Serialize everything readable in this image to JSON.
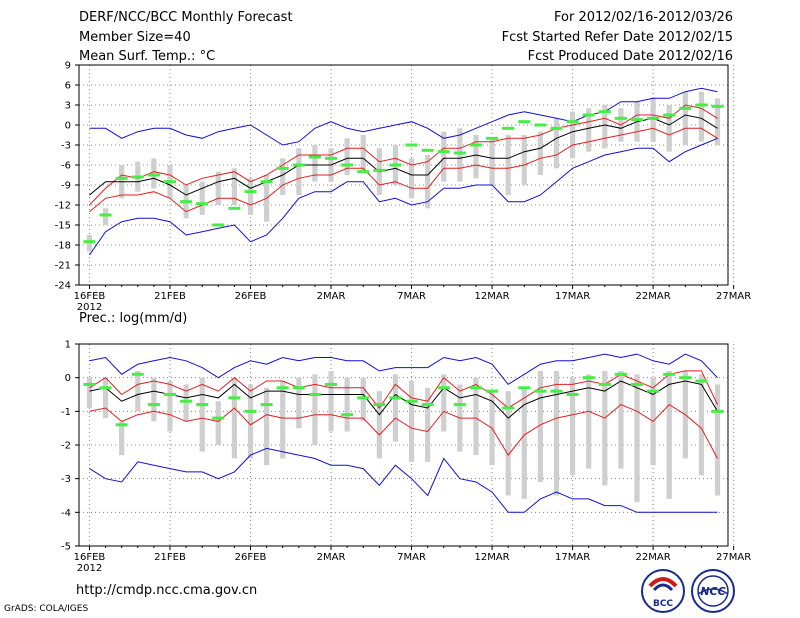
{
  "header": {
    "title": "DERF/NCC/BCC Monthly Forecast",
    "member_size": "Member Size=40",
    "variable": "Mean Surf. Temp.: °C",
    "forecast_period": "For 2012/02/16-2012/03/26",
    "fcst_started": "Fcst Started Refer Date 2012/02/15",
    "fcst_produced": "Fcst Produced Date 2012/02/16"
  },
  "footer": {
    "url": "http://cmdp.ncc.cma.gov.cn",
    "grads_credit": "GrADS: COLA/IGES",
    "logo_bcc_text": "BCC",
    "logo_ncc_text": "NCC"
  },
  "colors": {
    "ensemble_mean": "#000000",
    "spread_band": "#e02020",
    "envelope": "#1010d0",
    "member_range_box": "#cfcfcf",
    "observation": "#44ee44",
    "grid": "#888888"
  },
  "chart_data": [
    {
      "type": "line",
      "title": "Mean Surf. Temp.: °C",
      "xlabel": "",
      "ylabel": "°C",
      "x_tick_labels": [
        "16FEB",
        "21FEB",
        "26FEB",
        "2MAR",
        "7MAR",
        "12MAR",
        "17MAR",
        "22MAR",
        "27MAR"
      ],
      "x_year_label": "2012",
      "ylim": [
        -24,
        9
      ],
      "y_ticks": [
        -24,
        -21,
        -18,
        -15,
        -12,
        -9,
        -6,
        -3,
        0,
        3,
        6,
        9
      ],
      "grid": true,
      "days": 40,
      "series": [
        {
          "name": "upper envelope",
          "values": [
            -0.5,
            -0.5,
            -2.0,
            -1.0,
            -0.5,
            -0.5,
            -1.5,
            -2.0,
            -1.0,
            -0.5,
            0.0,
            -1.5,
            -3.0,
            -2.5,
            -0.5,
            0.5,
            -0.5,
            -1.0,
            -0.5,
            0.0,
            0.5,
            -0.5,
            -2.0,
            -1.5,
            -0.5,
            0.5,
            1.5,
            2.0,
            1.5,
            1.0,
            0.5,
            1.5,
            2.0,
            3.5,
            3.5,
            4.0,
            4.0,
            5.0,
            5.5,
            5.0
          ]
        },
        {
          "name": "upper spread",
          "values": [
            -12.0,
            -9.5,
            -7.5,
            -8.0,
            -7.0,
            -7.5,
            -9.0,
            -8.0,
            -7.5,
            -7.0,
            -8.5,
            -7.5,
            -6.0,
            -4.5,
            -4.5,
            -4.5,
            -3.5,
            -3.5,
            -5.5,
            -5.0,
            -6.0,
            -5.5,
            -3.5,
            -3.5,
            -2.5,
            -2.5,
            -2.0,
            -2.0,
            -1.5,
            -0.5,
            0.0,
            0.5,
            1.0,
            0.0,
            1.5,
            1.5,
            1.0,
            3.0,
            2.5,
            1.0
          ]
        },
        {
          "name": "ensemble mean",
          "values": [
            -10.5,
            -8.5,
            -8.5,
            -8.5,
            -8.0,
            -9.0,
            -10.5,
            -9.5,
            -8.5,
            -8.0,
            -9.5,
            -8.5,
            -7.5,
            -6.0,
            -6.0,
            -6.0,
            -5.0,
            -5.0,
            -7.0,
            -6.5,
            -7.5,
            -7.5,
            -5.0,
            -5.0,
            -4.5,
            -5.0,
            -5.0,
            -4.0,
            -3.5,
            -2.0,
            -1.0,
            -0.5,
            0.0,
            -0.5,
            0.5,
            1.0,
            0.0,
            1.5,
            1.0,
            -0.5
          ]
        },
        {
          "name": "lower spread",
          "values": [
            -13.0,
            -11.0,
            -10.5,
            -10.5,
            -10.0,
            -11.0,
            -13.0,
            -12.0,
            -11.0,
            -11.0,
            -12.0,
            -11.0,
            -9.0,
            -8.0,
            -7.5,
            -7.5,
            -6.5,
            -6.5,
            -9.0,
            -8.5,
            -9.5,
            -9.5,
            -6.5,
            -6.5,
            -6.0,
            -6.5,
            -6.5,
            -6.0,
            -5.0,
            -4.5,
            -3.0,
            -2.5,
            -2.0,
            -1.5,
            -1.0,
            -0.5,
            -1.5,
            -0.5,
            -0.5,
            -2.0
          ]
        },
        {
          "name": "lower envelope",
          "values": [
            -19.5,
            -16.0,
            -14.5,
            -14.0,
            -14.0,
            -14.5,
            -16.5,
            -16.0,
            -15.5,
            -15.0,
            -17.5,
            -16.5,
            -14.0,
            -11.0,
            -10.0,
            -10.0,
            -8.5,
            -8.5,
            -11.5,
            -11.0,
            -12.0,
            -11.5,
            -9.5,
            -9.5,
            -9.0,
            -9.0,
            -11.5,
            -11.5,
            -10.5,
            -8.5,
            -6.5,
            -5.5,
            -4.5,
            -4.0,
            -3.5,
            -3.5,
            -5.5,
            -4.0,
            -3.0,
            -2.0
          ]
        }
      ],
      "member_range": {
        "low": [
          -19.0,
          -15.0,
          -11.0,
          -10.0,
          -9.5,
          -11.0,
          -14.0,
          -13.5,
          -12.0,
          -12.0,
          -13.5,
          -14.5,
          -10.5,
          -10.5,
          -8.5,
          -8.5,
          -7.5,
          -7.0,
          -10.5,
          -9.0,
          -11.0,
          -12.5,
          -8.5,
          -8.5,
          -8.0,
          -9.0,
          -10.5,
          -9.0,
          -7.5,
          -6.5,
          -5.0,
          -4.0,
          -3.5,
          -2.5,
          -2.5,
          -2.5,
          -4.0,
          -3.0,
          -2.5,
          -3.0
        ],
        "high": [
          -16.5,
          -12.5,
          -6.0,
          -5.5,
          -5.0,
          -6.0,
          -9.0,
          -8.5,
          -7.0,
          -6.5,
          -8.0,
          -7.5,
          -5.0,
          -3.5,
          -3.0,
          -3.5,
          -2.0,
          -1.5,
          -3.5,
          -3.0,
          -5.0,
          -4.5,
          -1.0,
          -0.5,
          -1.5,
          -2.0,
          -1.5,
          -1.5,
          -1.0,
          1.0,
          2.0,
          2.5,
          3.0,
          2.5,
          3.5,
          4.0,
          3.0,
          5.0,
          5.0,
          4.0
        ]
      },
      "observed": [
        -17.5,
        -13.5,
        -8.0,
        -7.8,
        -7.5,
        -8.5,
        -11.5,
        -11.8,
        -15.0,
        -12.5,
        -10.0,
        -8.5,
        -6.5,
        -6.0,
        -4.8,
        -5.0,
        -6.0,
        -7.0,
        -6.8,
        -6.0,
        -3.0,
        -3.8,
        -4.0,
        -4.2,
        -3.0,
        -2.0,
        -0.5,
        0.5,
        0.0,
        -0.5,
        0.5,
        1.5,
        2.0,
        1.0,
        0.8,
        1.0,
        1.5,
        2.5,
        3.0,
        2.8
      ]
    },
    {
      "type": "line",
      "title": "Prec.: log(mm/d)",
      "xlabel": "",
      "ylabel": "log(mm/d)",
      "x_tick_labels": [
        "16FEB",
        "21FEB",
        "26FEB",
        "2MAR",
        "7MAR",
        "12MAR",
        "17MAR",
        "22MAR",
        "27MAR"
      ],
      "x_year_label": "2012",
      "ylim": [
        -5,
        1
      ],
      "y_ticks": [
        -5,
        -4,
        -3,
        -2,
        -1,
        0,
        1
      ],
      "grid": true,
      "days": 40,
      "series": [
        {
          "name": "upper envelope",
          "values": [
            0.5,
            0.6,
            0.1,
            0.4,
            0.5,
            0.6,
            0.5,
            0.3,
            0.0,
            0.3,
            0.5,
            0.4,
            0.6,
            0.5,
            0.6,
            0.6,
            0.5,
            0.5,
            0.2,
            0.3,
            0.3,
            0.3,
            0.6,
            0.5,
            0.6,
            0.4,
            -0.2,
            0.1,
            0.4,
            0.5,
            0.5,
            0.6,
            0.7,
            0.6,
            0.7,
            0.5,
            0.4,
            0.7,
            0.5,
            0.0
          ]
        },
        {
          "name": "upper spread",
          "values": [
            -0.3,
            0.0,
            -0.5,
            -0.2,
            -0.1,
            -0.2,
            -0.4,
            -0.2,
            -0.4,
            0.0,
            -0.4,
            -0.1,
            -0.1,
            -0.3,
            -0.2,
            -0.3,
            -0.3,
            -0.3,
            -0.9,
            -0.2,
            -0.6,
            -0.7,
            0.0,
            -0.4,
            -0.2,
            -0.5,
            -0.9,
            -0.6,
            -0.3,
            -0.2,
            -0.2,
            -0.1,
            -0.2,
            0.1,
            -0.1,
            -0.3,
            0.1,
            0.2,
            0.2,
            -0.8
          ]
        },
        {
          "name": "ensemble mean",
          "values": [
            -0.4,
            -0.3,
            -0.7,
            -0.5,
            -0.4,
            -0.5,
            -0.6,
            -0.5,
            -0.6,
            -0.2,
            -0.6,
            -0.4,
            -0.4,
            -0.5,
            -0.5,
            -0.5,
            -0.5,
            -0.5,
            -1.1,
            -0.5,
            -0.8,
            -0.9,
            -0.3,
            -0.6,
            -0.5,
            -0.7,
            -1.2,
            -0.8,
            -0.6,
            -0.5,
            -0.4,
            -0.3,
            -0.4,
            -0.1,
            -0.3,
            -0.5,
            -0.2,
            -0.1,
            -0.2,
            -1.0
          ]
        },
        {
          "name": "lower spread",
          "values": [
            -1.0,
            -0.9,
            -1.3,
            -1.1,
            -1.0,
            -1.1,
            -1.3,
            -1.2,
            -1.3,
            -0.9,
            -1.4,
            -1.1,
            -1.2,
            -1.2,
            -1.1,
            -1.1,
            -1.2,
            -1.2,
            -1.7,
            -1.2,
            -1.5,
            -1.6,
            -1.0,
            -1.2,
            -1.2,
            -1.5,
            -2.3,
            -1.7,
            -1.4,
            -1.2,
            -1.1,
            -1.0,
            -1.2,
            -0.8,
            -1.0,
            -1.3,
            -0.8,
            -1.1,
            -1.5,
            -2.4
          ]
        },
        {
          "name": "lower envelope",
          "values": [
            -2.7,
            -3.0,
            -3.1,
            -2.5,
            -2.6,
            -2.7,
            -2.8,
            -2.8,
            -3.0,
            -2.8,
            -2.3,
            -2.1,
            -2.2,
            -2.3,
            -2.4,
            -2.6,
            -2.6,
            -2.7,
            -3.2,
            -2.6,
            -3.0,
            -3.5,
            -2.4,
            -3.0,
            -3.1,
            -3.4,
            -4.0,
            -4.0,
            -3.6,
            -3.4,
            -3.6,
            -3.6,
            -3.8,
            -3.8,
            -4.0,
            -4.0,
            -4.0,
            -4.0,
            -4.0,
            -4.0
          ]
        }
      ],
      "member_range": {
        "low": [
          -0.9,
          -1.2,
          -2.3,
          -1.0,
          -1.3,
          -1.6,
          -1.3,
          -2.2,
          -2.0,
          -2.4,
          -2.4,
          -2.6,
          -2.4,
          -1.5,
          -2.0,
          -1.6,
          -1.6,
          -1.3,
          -2.4,
          -1.9,
          -2.5,
          -2.5,
          -1.6,
          -2.2,
          -2.3,
          -2.6,
          -3.5,
          -3.6,
          -3.1,
          -3.5,
          -2.9,
          -2.7,
          -3.2,
          -2.7,
          -3.7,
          -2.6,
          -3.6,
          -2.4,
          -2.9,
          -3.5
        ],
        "high": [
          0.0,
          0.0,
          -1.3,
          0.2,
          0.0,
          -0.1,
          -0.2,
          0.0,
          -0.7,
          0.0,
          -0.2,
          -0.3,
          -0.1,
          0.0,
          0.1,
          0.2,
          0.0,
          0.0,
          -0.4,
          0.1,
          -0.1,
          -0.3,
          0.1,
          -0.2,
          0.0,
          -0.4,
          -0.4,
          -0.3,
          0.2,
          0.2,
          0.0,
          0.1,
          0.2,
          0.2,
          0.1,
          0.0,
          0.2,
          0.2,
          0.1,
          -0.2
        ]
      },
      "observed": [
        -0.2,
        -0.3,
        -1.4,
        0.1,
        -0.8,
        -0.5,
        -0.7,
        -0.8,
        -1.2,
        -0.6,
        -1.0,
        -0.8,
        -0.3,
        -0.3,
        -0.5,
        -0.2,
        -1.1,
        -0.6,
        -0.8,
        -0.6,
        -0.7,
        -0.8,
        -0.3,
        -0.8,
        -0.3,
        -0.4,
        -0.9,
        -0.3,
        -0.4,
        -0.4,
        -0.5,
        0.0,
        -0.2,
        0.1,
        -0.2,
        -0.4,
        0.1,
        0.0,
        -0.1,
        -1.0
      ]
    }
  ]
}
